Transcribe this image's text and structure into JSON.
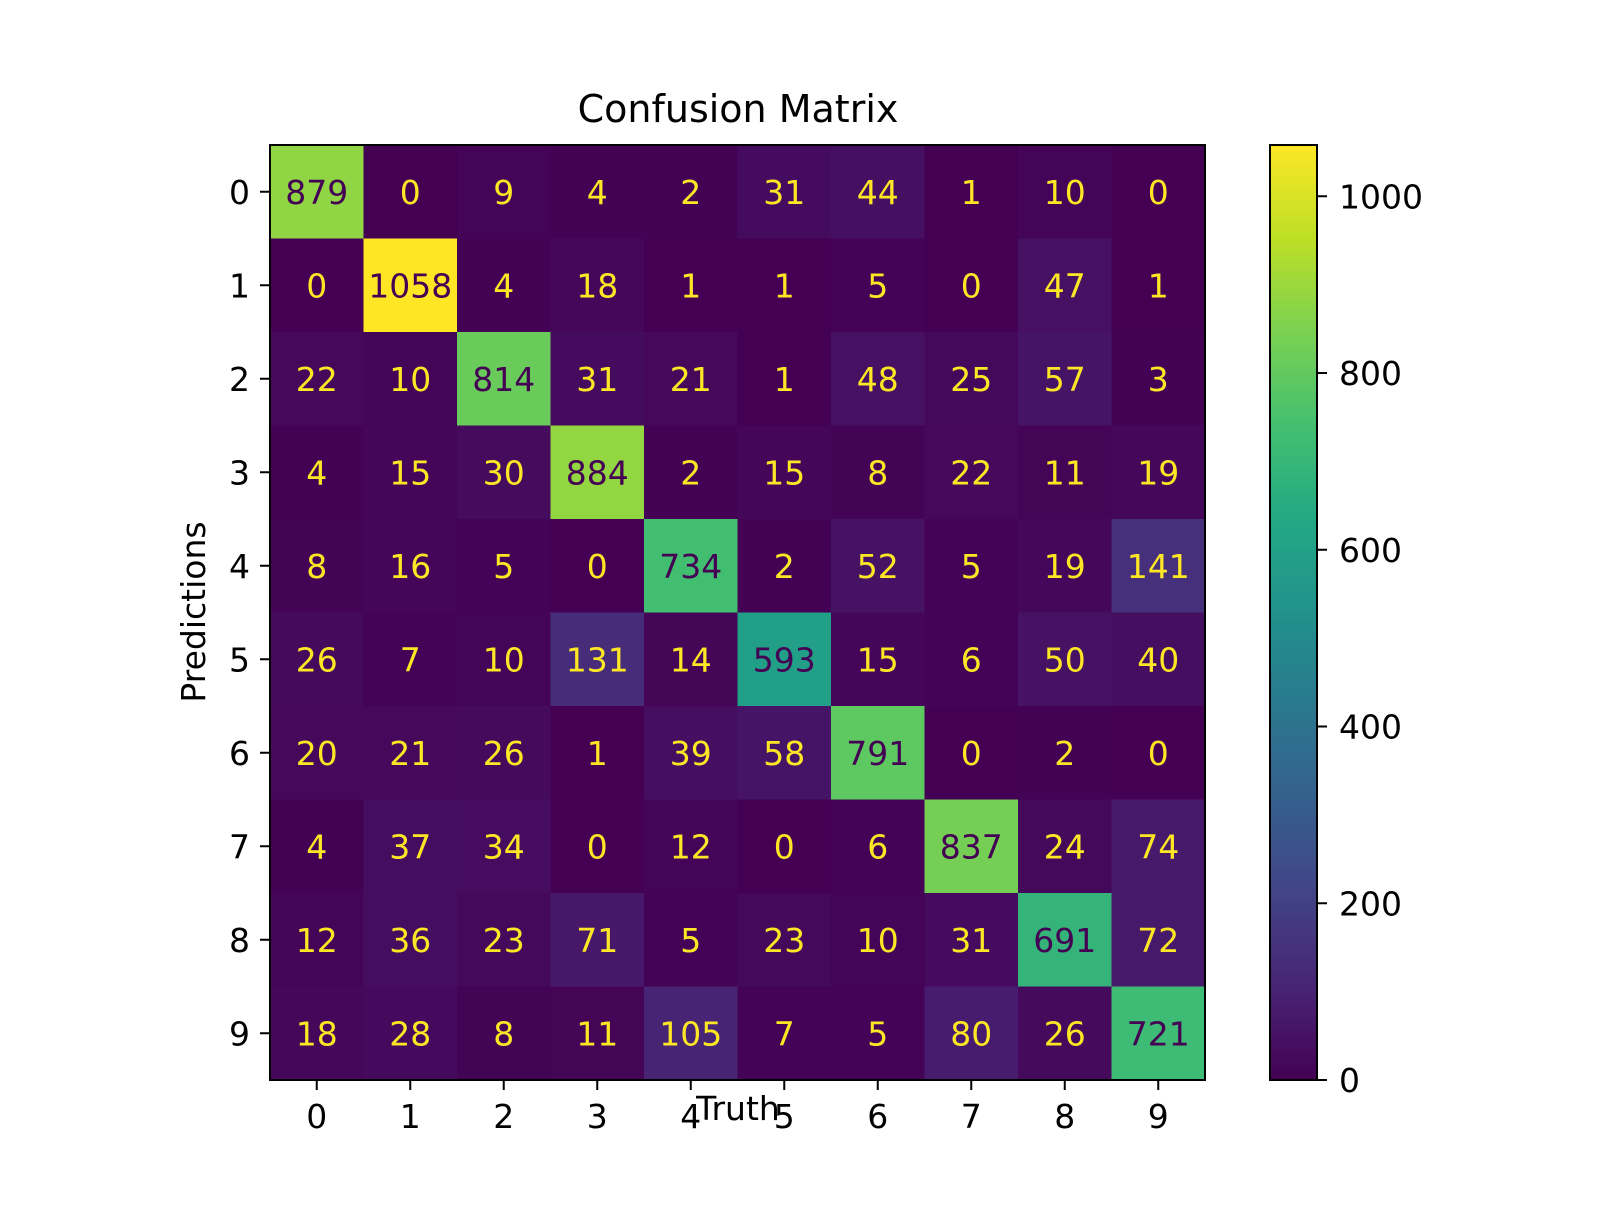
{
  "chart_data": {
    "type": "heatmap",
    "title": "Confusion Matrix",
    "xlabel": "Truth",
    "ylabel": "Predictions",
    "x_categories": [
      "0",
      "1",
      "2",
      "3",
      "4",
      "5",
      "6",
      "7",
      "8",
      "9"
    ],
    "y_categories": [
      "0",
      "1",
      "2",
      "3",
      "4",
      "5",
      "6",
      "7",
      "8",
      "9"
    ],
    "values": [
      [
        879,
        0,
        9,
        4,
        2,
        31,
        44,
        1,
        10,
        0
      ],
      [
        0,
        1058,
        4,
        18,
        1,
        1,
        5,
        0,
        47,
        1
      ],
      [
        22,
        10,
        814,
        31,
        21,
        1,
        48,
        25,
        57,
        3
      ],
      [
        4,
        15,
        30,
        884,
        2,
        15,
        8,
        22,
        11,
        19
      ],
      [
        8,
        16,
        5,
        0,
        734,
        2,
        52,
        5,
        19,
        141
      ],
      [
        26,
        7,
        10,
        131,
        14,
        593,
        15,
        6,
        50,
        40
      ],
      [
        20,
        21,
        26,
        1,
        39,
        58,
        791,
        0,
        2,
        0
      ],
      [
        4,
        37,
        34,
        0,
        12,
        0,
        6,
        837,
        24,
        74
      ],
      [
        12,
        36,
        23,
        71,
        5,
        23,
        10,
        31,
        691,
        72
      ],
      [
        18,
        28,
        8,
        11,
        105,
        7,
        5,
        80,
        26,
        721
      ]
    ],
    "colormap": "viridis",
    "color_range": [
      0,
      1058
    ],
    "colorbar_ticks": [
      0,
      200,
      400,
      600,
      800,
      1000
    ],
    "grid": false,
    "colorbar_position": "right",
    "text_color_light": "#fde725",
    "text_color_dark": "#440154"
  }
}
